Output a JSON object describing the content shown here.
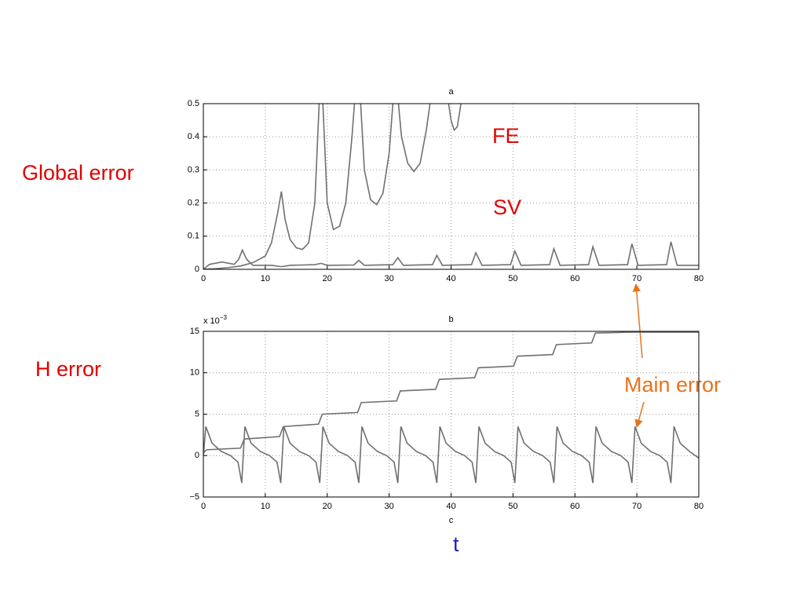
{
  "chart_data": [
    {
      "type": "line",
      "title": "a",
      "xlim": [
        0,
        80
      ],
      "ylim": [
        0,
        0.5
      ],
      "xticks": [
        0,
        10,
        20,
        30,
        40,
        50,
        60,
        70,
        80
      ],
      "yticks": [
        0,
        0.1,
        0.2,
        0.3,
        0.4,
        0.5
      ],
      "grid": true,
      "series": [
        {
          "color": "#707070",
          "x": [
            0,
            2,
            4,
            6,
            8,
            10,
            11,
            12,
            12.6,
            13.2,
            14,
            15,
            16,
            17,
            18,
            18.7,
            19,
            19.3,
            20,
            21,
            22,
            23,
            24,
            24.4,
            25,
            25.4,
            26,
            27,
            28,
            29,
            30,
            30.6,
            31,
            31.5,
            32,
            33,
            34,
            35,
            36,
            36.6,
            38,
            39.6,
            40,
            40.5,
            41,
            41.6,
            42
          ],
          "values": [
            0,
            0.002,
            0.005,
            0.01,
            0.02,
            0.04,
            0.08,
            0.17,
            0.235,
            0.15,
            0.09,
            0.065,
            0.06,
            0.08,
            0.2,
            0.5,
            null,
            0.5,
            0.2,
            0.12,
            0.13,
            0.2,
            0.4,
            0.5,
            null,
            0.5,
            0.3,
            0.21,
            0.195,
            0.23,
            0.35,
            0.5,
            null,
            0.5,
            0.4,
            0.32,
            0.295,
            0.32,
            0.42,
            0.5,
            null,
            0.5,
            0.45,
            0.42,
            0.43,
            0.5,
            null
          ]
        },
        {
          "color": "#707070",
          "x": [
            0,
            1,
            3,
            5,
            5.7,
            6.3,
            7,
            8,
            11,
            12.6,
            14,
            18,
            19,
            20,
            24.3,
            25.1,
            26,
            30.6,
            31.4,
            32.3,
            37,
            37.7,
            38.6,
            43.3,
            44,
            45,
            49.6,
            50.3,
            51.3,
            55.9,
            56.6,
            57.6,
            62.2,
            62.9,
            63.9,
            68.5,
            69.2,
            70.2,
            74.8,
            75.5,
            76.5,
            80
          ],
          "values": [
            0,
            0.015,
            0.022,
            0.015,
            0.03,
            0.058,
            0.03,
            0.012,
            0.012,
            0.008,
            0.012,
            0.014,
            0.018,
            0.012,
            0.013,
            0.027,
            0.012,
            0.014,
            0.035,
            0.012,
            0.014,
            0.042,
            0.012,
            0.014,
            0.05,
            0.012,
            0.014,
            0.055,
            0.012,
            0.014,
            0.062,
            0.012,
            0.014,
            0.068,
            0.012,
            0.014,
            0.077,
            0.012,
            0.014,
            0.083,
            0.012,
            0.012
          ]
        }
      ]
    },
    {
      "type": "line",
      "title": "b",
      "x_label": "c",
      "y_multiplier": {
        "base": "x 10",
        "exponent": "−3"
      },
      "xlim": [
        0,
        80
      ],
      "ylim": [
        -5,
        15
      ],
      "xticks": [
        0,
        10,
        20,
        30,
        40,
        50,
        60,
        70,
        80
      ],
      "yticks": [
        {
          "value": -5,
          "label": "−5"
        },
        0,
        5,
        10,
        15
      ],
      "grid": true,
      "series": [
        {
          "color": "#707070",
          "x": [
            0,
            0.5,
            6,
            6.6,
            12.3,
            12.9,
            18.6,
            19.2,
            24.9,
            25.5,
            31.2,
            31.8,
            37.5,
            38.1,
            43.8,
            44.4,
            50.1,
            50.7,
            56.4,
            57,
            62.7,
            63.3,
            69,
            80
          ],
          "values": [
            0.3,
            0.7,
            0.9,
            2.0,
            2.3,
            3.5,
            3.8,
            5.0,
            5.2,
            6.4,
            6.6,
            7.8,
            8.0,
            9.2,
            9.4,
            10.6,
            10.8,
            12.0,
            12.2,
            13.4,
            13.6,
            14.8,
            14.9,
            14.9
          ]
        },
        {
          "color": "#707070",
          "x": [
            0,
            0.4,
            1.4,
            2.9,
            4.4,
            5.6,
            6.2,
            6.7,
            7.7,
            9.2,
            10.7,
            11.9,
            12.5,
            13,
            14,
            15.5,
            17,
            18.2,
            18.8,
            19.3,
            20.3,
            21.8,
            23.3,
            24.5,
            25.1,
            25.6,
            26.6,
            28.1,
            29.6,
            30.8,
            31.4,
            31.9,
            32.9,
            34.4,
            35.9,
            37.1,
            37.7,
            38.2,
            39.2,
            40.7,
            42.2,
            43.4,
            44,
            44.5,
            45.5,
            47,
            48.5,
            49.7,
            50.3,
            50.8,
            51.8,
            53.3,
            54.8,
            56,
            56.6,
            57.1,
            58.1,
            59.6,
            61.1,
            62.3,
            62.9,
            63.4,
            64.4,
            65.9,
            67.4,
            68.6,
            69.2,
            69.7,
            70.7,
            72.2,
            73.7,
            74.9,
            75.5,
            76,
            77,
            78.5,
            80
          ],
          "values": [
            0,
            3.5,
            1.5,
            0.5,
            0,
            -0.8,
            -3.3,
            3.5,
            1.5,
            0.5,
            0,
            -0.8,
            -3.3,
            3.5,
            1.5,
            0.5,
            0,
            -0.8,
            -3.3,
            3.5,
            1.5,
            0.5,
            0,
            -0.8,
            -3.3,
            3.5,
            1.5,
            0.5,
            0,
            -0.8,
            -3.3,
            3.5,
            1.5,
            0.5,
            0,
            -0.8,
            -3.3,
            3.5,
            1.5,
            0.5,
            0,
            -0.8,
            -3.3,
            3.5,
            1.5,
            0.5,
            0,
            -0.8,
            -3.3,
            3.5,
            1.5,
            0.5,
            0,
            -0.8,
            -3.3,
            3.5,
            1.5,
            0.5,
            0,
            -0.8,
            -3.3,
            3.5,
            1.5,
            0.5,
            0,
            -0.8,
            -3.3,
            3.5,
            1.5,
            0.5,
            0,
            -0.8,
            -3.3,
            3.5,
            1.5,
            0.5,
            -0.3
          ]
        }
      ]
    }
  ],
  "slide": {
    "global_error": "Global error",
    "fe": "FE",
    "sv": "SV",
    "h_error": "H error",
    "main_error": "Main error",
    "t": "t"
  }
}
